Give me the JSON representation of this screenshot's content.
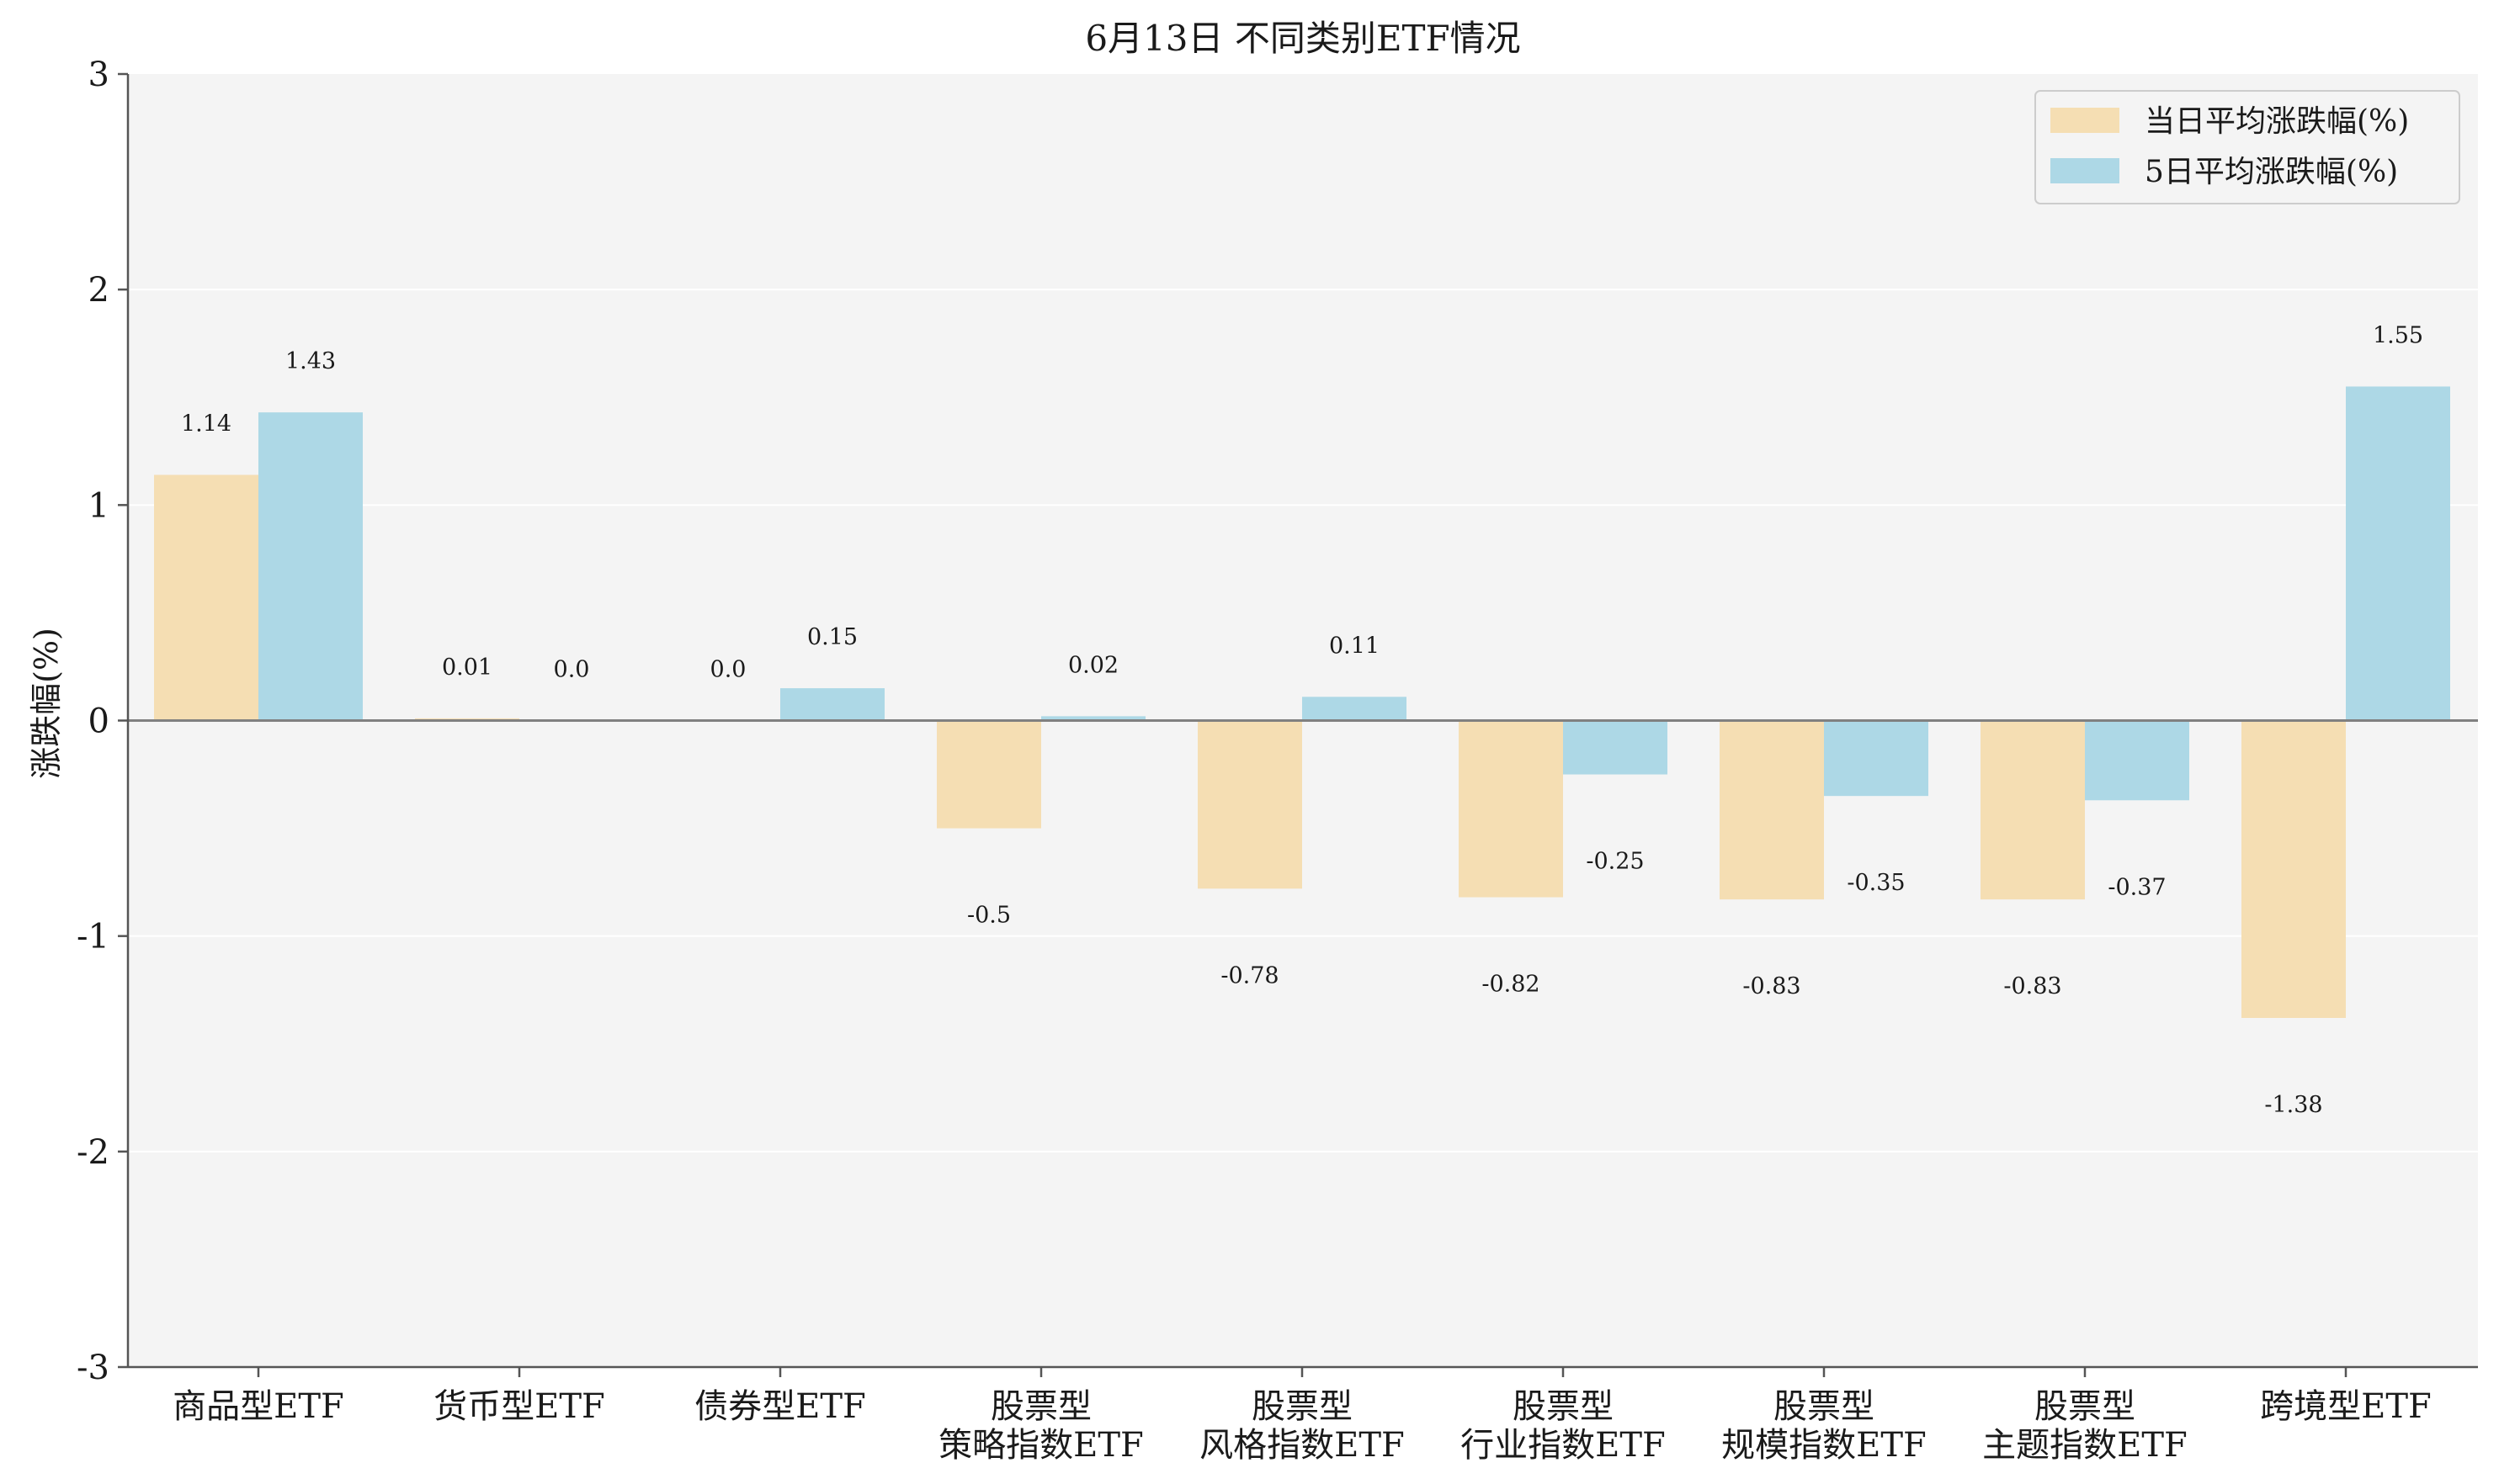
{
  "chart_data": {
    "type": "bar",
    "title": "6月13日 不同类别ETF情况",
    "xlabel": "",
    "ylabel": "涨跌幅(%)",
    "ylim": [
      -3,
      3
    ],
    "yticks": [
      -3,
      -2,
      -1,
      0,
      1,
      2,
      3
    ],
    "grid": "horizontal",
    "legend_position": "top-right",
    "categories": [
      [
        "商品型ETF"
      ],
      [
        "货币型ETF"
      ],
      [
        "债券型ETF"
      ],
      [
        "股票型",
        "策略指数ETF"
      ],
      [
        "股票型",
        "风格指数ETF"
      ],
      [
        "股票型",
        "行业指数ETF"
      ],
      [
        "股票型",
        "规模指数ETF"
      ],
      [
        "股票型",
        "主题指数ETF"
      ],
      [
        "跨境型ETF"
      ]
    ],
    "series": [
      {
        "name": "当日平均涨跌幅(%)",
        "color": "#f5deb3",
        "values": [
          1.14,
          0.01,
          0.0,
          -0.5,
          -0.78,
          -0.82,
          -0.83,
          -0.83,
          -1.38
        ],
        "labels": [
          "1.14",
          "0.01",
          "0.0",
          "-0.5",
          "-0.78",
          "-0.82",
          "-0.83",
          "-0.83",
          "-1.38"
        ]
      },
      {
        "name": "5日平均涨跌幅(%)",
        "color": "#add8e6",
        "values": [
          1.43,
          0.0,
          0.15,
          0.02,
          0.11,
          -0.25,
          -0.35,
          -0.37,
          1.55
        ],
        "labels": [
          "1.43",
          "0.0",
          "0.15",
          "0.02",
          "0.11",
          "-0.25",
          "-0.35",
          "-0.37",
          "1.55"
        ]
      }
    ]
  },
  "colors": {
    "plot_background": "#f4f4f4",
    "grid": "#ffffff",
    "axis": "#555555",
    "zero_line": "#808080"
  }
}
